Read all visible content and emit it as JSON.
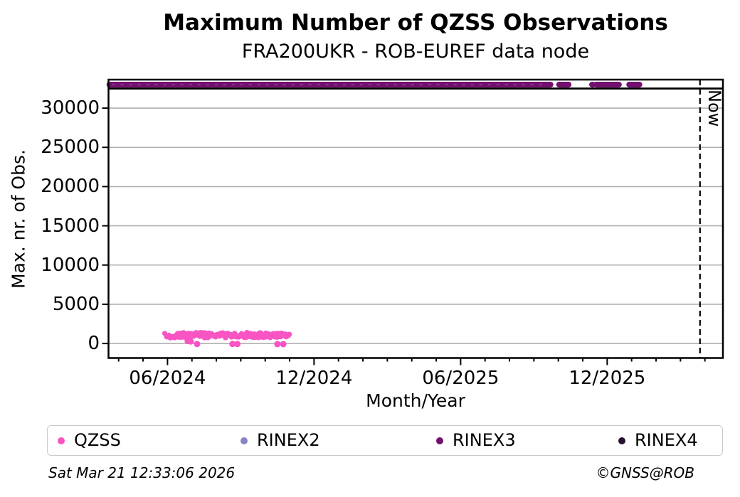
{
  "title": "Maximum Number of QZSS Observations",
  "subtitle": "FRA200UKR - ROB-EUREF data node",
  "footer": {
    "timestamp": "Sat Mar 21 12:33:06 2026",
    "credit": "©GNSS@ROB"
  },
  "colors": {
    "grid": "#b0b0b0",
    "spine": "#000000",
    "qzss": "#F854C3",
    "rinex2": "#8884C8",
    "rinex3": "#73106F",
    "rinex4": "#2A1030"
  },
  "chart_data": {
    "type": "scatter",
    "title": "Maximum Number of QZSS Observations",
    "subtitle": "FRA200UKR - ROB-EUREF data node",
    "xlabel": "Month/Year",
    "ylabel": "Max. nr. of Obs.",
    "ylim": [
      -1900,
      33700
    ],
    "grid": "horizontal-gray",
    "legend_position": "bottom",
    "y_ticks": [
      0,
      5000,
      10000,
      15000,
      20000,
      25000,
      30000
    ],
    "x_axis": {
      "unit": "months since 2024-01-01",
      "minor_month_range": [
        3,
        27
      ],
      "major_months": [
        5,
        11,
        17,
        23
      ],
      "major_labels": [
        "06/2024",
        "12/2024",
        "06/2025",
        "12/2025"
      ]
    },
    "now_marker": {
      "label": "Now",
      "month": 26.8,
      "style": "dashed-vertical-line"
    },
    "max_line": {
      "value": 32500,
      "color": "#000000",
      "note": "solid horizontal line spanning full plot width just below RINEX3 band"
    },
    "series": [
      {
        "name": "QZSS",
        "color": "#F854C3",
        "marker": "dot",
        "value_approx": 1050,
        "value_spread": 300,
        "segments_months": [
          [
            4.9,
            10.0
          ]
        ],
        "low_points_months_value": [
          [
            5.83,
            320
          ],
          [
            5.95,
            260
          ],
          [
            6.21,
            -60
          ],
          [
            7.66,
            -60
          ],
          [
            7.86,
            -60
          ],
          [
            9.5,
            -80
          ],
          [
            9.74,
            -80
          ]
        ]
      },
      {
        "name": "RINEX2",
        "color": "#8884C8",
        "marker": "dot",
        "segments_months": [],
        "note": "no data visible"
      },
      {
        "name": "RINEX3",
        "color": "#73106F",
        "marker": "dot",
        "value_approx": 33000,
        "segments_months": [
          [
            2.62,
            20.68
          ],
          [
            21.03,
            21.42
          ],
          [
            22.38,
            22.42
          ],
          [
            22.55,
            23.48
          ],
          [
            23.9,
            24.32
          ]
        ]
      },
      {
        "name": "RINEX4",
        "color": "#2A1030",
        "marker": "dot",
        "segments_months": [],
        "note": "no data visible"
      }
    ],
    "legend_entries": [
      "QZSS",
      "RINEX2",
      "RINEX3",
      "RINEX4"
    ]
  }
}
